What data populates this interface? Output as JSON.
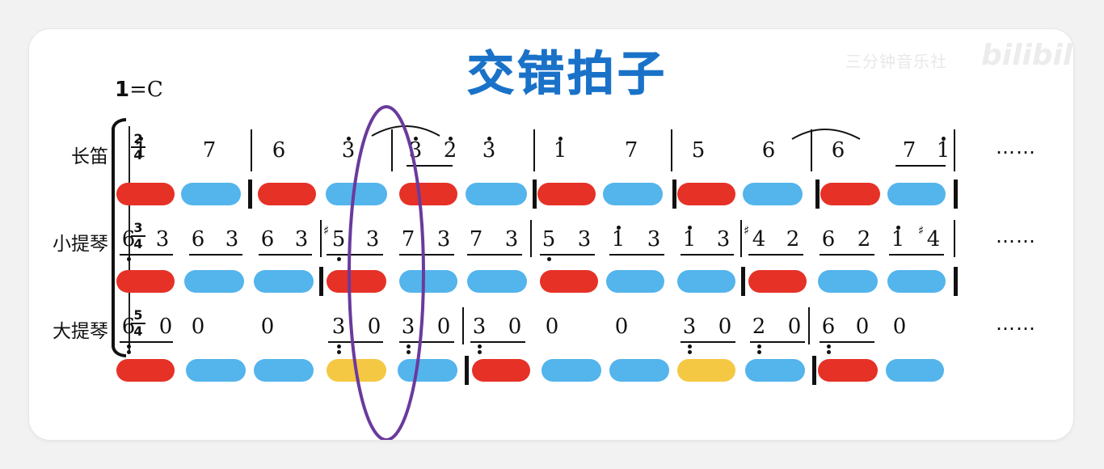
{
  "title": "交错拍子",
  "watermark": "三分钟音乐社",
  "watermark_logo": "bilibili",
  "key": {
    "one": "1",
    "eq": "=C"
  },
  "colors": {
    "title": "#1a72c8",
    "red": "#e63127",
    "blue": "#54b4ec",
    "yellow": "#f5c844",
    "circle": "#6a3a9c"
  },
  "ellipsis": "……",
  "staves": [
    {
      "name": "长笛",
      "ts_num": "2",
      "ts_den": "4",
      "notes": [
        {
          "x": 163,
          "t": "1",
          "da": 1
        },
        {
          "x": 248,
          "t": "7"
        },
        {
          "x": 334,
          "t": "6"
        },
        {
          "x": 420,
          "t": "3",
          "da": 1
        },
        {
          "x": 503,
          "t": "3",
          "da": 1
        },
        {
          "x": 546,
          "t": "2",
          "da": 1
        },
        {
          "x": 594,
          "t": "3",
          "da": 1
        },
        {
          "x": 682,
          "t": "1",
          "da": 1
        },
        {
          "x": 770,
          "t": "7"
        },
        {
          "x": 853,
          "t": "5"
        },
        {
          "x": 940,
          "t": "6"
        },
        {
          "x": 1026,
          "t": "6"
        },
        {
          "x": 1114,
          "t": "7"
        },
        {
          "x": 1156,
          "t": "1",
          "da": 1
        }
      ],
      "underlines": [
        [
          503,
          560
        ],
        [
          1108,
          1170
        ]
      ],
      "bars": [
        310,
        484,
        660,
        830,
        1003,
        1180
      ],
      "pills": [
        {
          "x": 144,
          "w": 72,
          "c": "red"
        },
        {
          "x": 224,
          "w": 74,
          "c": "blue"
        },
        {
          "x": 319,
          "w": 72,
          "c": "red"
        },
        {
          "x": 403,
          "w": 76,
          "c": "blue"
        },
        {
          "x": 494,
          "w": 72,
          "c": "red"
        },
        {
          "x": 576,
          "w": 76,
          "c": "blue"
        },
        {
          "x": 665,
          "w": 72,
          "c": "red"
        },
        {
          "x": 746,
          "w": 74,
          "c": "blue"
        },
        {
          "x": 838,
          "w": 72,
          "c": "red"
        },
        {
          "x": 919,
          "w": 74,
          "c": "blue"
        },
        {
          "x": 1015,
          "w": 74,
          "c": "red"
        },
        {
          "x": 1098,
          "w": 72,
          "c": "blue"
        }
      ],
      "heavy": [
        307,
        659,
        832,
        1009,
        1180
      ]
    },
    {
      "name": "小提琴",
      "ts_num": "3",
      "ts_den": "4",
      "notes": [
        {
          "x": 148,
          "t": "6",
          "db": 1
        },
        {
          "x": 190,
          "t": "3"
        },
        {
          "x": 234,
          "t": "6"
        },
        {
          "x": 276,
          "t": "3"
        },
        {
          "x": 320,
          "t": "6"
        },
        {
          "x": 362,
          "t": "3"
        },
        {
          "x": 408,
          "t": "5",
          "db": 1,
          "sh": 1
        },
        {
          "x": 450,
          "t": "3"
        },
        {
          "x": 494,
          "t": "7"
        },
        {
          "x": 538,
          "t": "3"
        },
        {
          "x": 578,
          "t": "7"
        },
        {
          "x": 622,
          "t": "3"
        },
        {
          "x": 668,
          "t": "5",
          "db": 1
        },
        {
          "x": 712,
          "t": "3"
        },
        {
          "x": 754,
          "t": "1",
          "da": 1
        },
        {
          "x": 798,
          "t": "3"
        },
        {
          "x": 842,
          "t": "1",
          "da": 1
        },
        {
          "x": 884,
          "t": "3"
        },
        {
          "x": 928,
          "t": "4",
          "sh": 1
        },
        {
          "x": 970,
          "t": "2"
        },
        {
          "x": 1014,
          "t": "6"
        },
        {
          "x": 1058,
          "t": "2"
        },
        {
          "x": 1100,
          "t": "1",
          "da": 1
        },
        {
          "x": 1144,
          "t": "4",
          "sh": 1
        }
      ],
      "underlines": [
        [
          148,
          214
        ],
        [
          234,
          300
        ],
        [
          320,
          386
        ],
        [
          404,
          474
        ],
        [
          494,
          562
        ],
        [
          578,
          646
        ],
        [
          668,
          736
        ],
        [
          754,
          822
        ],
        [
          842,
          908
        ],
        [
          926,
          994
        ],
        [
          1014,
          1082
        ],
        [
          1100,
          1168
        ]
      ],
      "bars": [
        396,
        656,
        916,
        1180
      ],
      "pills": [
        {
          "x": 144,
          "w": 72,
          "c": "red"
        },
        {
          "x": 228,
          "w": 74,
          "c": "blue"
        },
        {
          "x": 314,
          "w": 74,
          "c": "blue"
        },
        {
          "x": 404,
          "w": 74,
          "c": "red"
        },
        {
          "x": 494,
          "w": 72,
          "c": "blue"
        },
        {
          "x": 578,
          "w": 74,
          "c": "blue"
        },
        {
          "x": 668,
          "w": 72,
          "c": "red"
        },
        {
          "x": 750,
          "w": 72,
          "c": "blue"
        },
        {
          "x": 838,
          "w": 72,
          "c": "blue"
        },
        {
          "x": 926,
          "w": 72,
          "c": "red"
        },
        {
          "x": 1012,
          "w": 74,
          "c": "blue"
        },
        {
          "x": 1098,
          "w": 72,
          "c": "blue"
        }
      ],
      "heavy": [
        395,
        917,
        1180
      ]
    },
    {
      "name": "大提琴",
      "ts_num": "5",
      "ts_den": "4",
      "notes": [
        {
          "x": 148,
          "t": "6",
          "db": 2
        },
        {
          "x": 194,
          "t": "0"
        },
        {
          "x": 234,
          "t": "0"
        },
        {
          "x": 320,
          "t": "0"
        },
        {
          "x": 408,
          "t": "3",
          "db": 2
        },
        {
          "x": 452,
          "t": "0"
        },
        {
          "x": 494,
          "t": "3",
          "db": 2
        },
        {
          "x": 538,
          "t": "0"
        },
        {
          "x": 582,
          "t": "3",
          "db": 2
        },
        {
          "x": 626,
          "t": "0"
        },
        {
          "x": 672,
          "t": "0"
        },
        {
          "x": 758,
          "t": "0"
        },
        {
          "x": 842,
          "t": "3",
          "db": 2
        },
        {
          "x": 886,
          "t": "0"
        },
        {
          "x": 928,
          "t": "2",
          "db": 2
        },
        {
          "x": 972,
          "t": "0"
        },
        {
          "x": 1014,
          "t": "6",
          "db": 2
        },
        {
          "x": 1056,
          "t": "0"
        },
        {
          "x": 1102,
          "t": "0"
        }
      ],
      "underlines": [
        [
          148,
          214
        ],
        [
          406,
          474
        ],
        [
          494,
          562
        ],
        [
          582,
          650
        ],
        [
          842,
          910
        ],
        [
          928,
          996
        ],
        [
          1014,
          1082
        ]
      ],
      "bars": [
        572,
        1000
      ],
      "pills": [
        {
          "x": 144,
          "w": 72,
          "c": "red"
        },
        {
          "x": 230,
          "w": 74,
          "c": "blue"
        },
        {
          "x": 314,
          "w": 74,
          "c": "blue"
        },
        {
          "x": 404,
          "w": 74,
          "c": "yellow"
        },
        {
          "x": 492,
          "w": 74,
          "c": "blue"
        },
        {
          "x": 584,
          "w": 72,
          "c": "red"
        },
        {
          "x": 670,
          "w": 74,
          "c": "blue"
        },
        {
          "x": 754,
          "w": 74,
          "c": "blue"
        },
        {
          "x": 838,
          "w": 72,
          "c": "yellow"
        },
        {
          "x": 922,
          "w": 74,
          "c": "blue"
        },
        {
          "x": 1012,
          "w": 74,
          "c": "red"
        },
        {
          "x": 1096,
          "w": 72,
          "c": "blue"
        }
      ],
      "heavy": [
        575,
        1005
      ]
    }
  ]
}
